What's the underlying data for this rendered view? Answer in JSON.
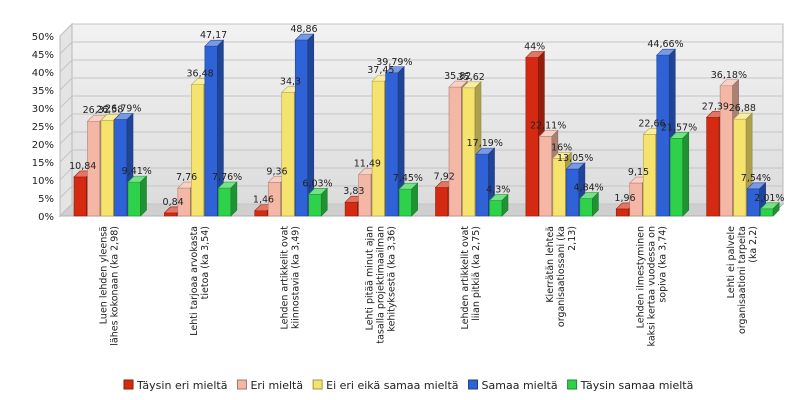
{
  "chart_data": {
    "type": "bar",
    "title": "",
    "xlabel": "",
    "ylabel": "",
    "ylim": [
      0,
      50
    ],
    "yticks": [
      "0%",
      "5%",
      "10%",
      "15%",
      "20%",
      "25%",
      "30%",
      "35%",
      "40%",
      "45%",
      "50%"
    ],
    "grid": true,
    "legend_position": "bottom",
    "categories": [
      "Luen lehden yleensä lähes kokonaan (ka 2,98)",
      "Lehti tarjoaa arvokasta tietoa (ka 3,54)",
      "Lehden artikkelit ovat kiinnostavia (ka 3,49)",
      "Lehti pitää minut ajan tasalla projektimaailman kehityksestä (ka 3,36)",
      "Lehden artikkelit ovat liian pitkiä (ka 2,75)",
      "Kierrätän lehteä organisaatiossani (ka 2,13)",
      "Lehden ilmestyminen kaksi kertaa vuodessa on sopiva (ka 3,74)",
      "Lehti ei palvele organisaationi tarpeita (ka 2,2)"
    ],
    "series": [
      {
        "name": "Täysin eri mieltä",
        "color": "#d42a12",
        "values": [
          10.84,
          0.84,
          1.46,
          3.83,
          7.92,
          44,
          1.96,
          27.39
        ],
        "labels": [
          "10,84",
          "0,84",
          "1,46",
          "3,83",
          "7,92",
          "44%",
          "1,96",
          "27,39"
        ]
      },
      {
        "name": "Eri mieltä",
        "color": "#f4b7a6",
        "values": [
          26.32,
          7.76,
          9.36,
          11.49,
          35.82,
          22.11,
          9.15,
          36.18
        ],
        "labels": [
          "26,32",
          "7,76",
          "9,36",
          "11,49",
          "35,82",
          "22,11%",
          "9,15",
          "36,18%"
        ]
      },
      {
        "name": "Ei eri eikä samaa mieltä",
        "color": "#f6e36e",
        "values": [
          26.58,
          36.48,
          34.3,
          37.45,
          35.62,
          16,
          22.66,
          26.88
        ],
        "labels": [
          "26,58",
          "36,48",
          "34,3",
          "37,45",
          "35,62",
          "16%",
          "22,66",
          "26,88"
        ]
      },
      {
        "name": "Samaa mieltä",
        "color": "#2f62d6",
        "values": [
          26.79,
          47.17,
          48.86,
          39.79,
          17.19,
          13.05,
          44.66,
          7.54
        ],
        "labels": [
          "26,79%",
          "47,17",
          "48,86",
          "39,79%",
          "17,19%",
          "13,05%",
          "44,66%",
          "7,54%"
        ]
      },
      {
        "name": "Täysin samaa mieltä",
        "color": "#2ed14a",
        "values": [
          9.41,
          7.76,
          6.03,
          7.45,
          4.3,
          4.84,
          21.57,
          2.01
        ],
        "labels": [
          "9,41%",
          "7,76%",
          "6,03%",
          "7,45%",
          "4,3%",
          "4,84%",
          "21,57%",
          "2,01%"
        ]
      }
    ]
  }
}
